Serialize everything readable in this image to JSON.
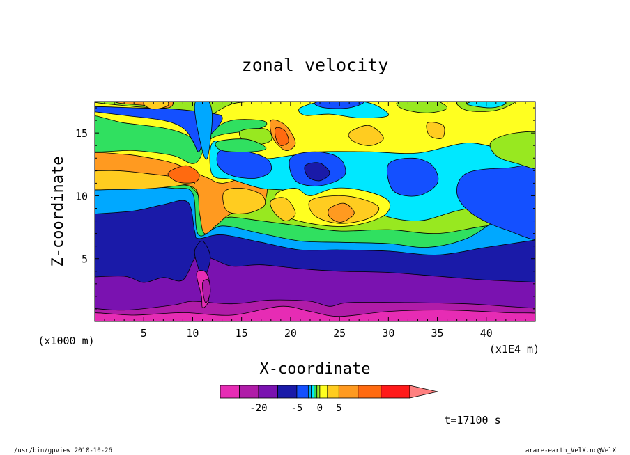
{
  "chart_data": {
    "type": "heatmap",
    "title": "zonal velocity",
    "xlabel": "X-coordinate",
    "ylabel": "Z-coordinate",
    "x_unit_label": "(x1E4 m)",
    "y_unit_label": "(x1000 m)",
    "xlim": [
      0,
      45
    ],
    "ylim": [
      0,
      17.5
    ],
    "x_ticks": [
      5,
      10,
      15,
      20,
      25,
      30,
      35,
      40
    ],
    "y_ticks": [
      5,
      10,
      15
    ],
    "colorbar": {
      "labels": [
        {
          "text": "-20",
          "value": -20
        },
        {
          "text": "-5",
          "value": -5
        },
        {
          "text": "0",
          "value": 0
        },
        {
          "text": "5",
          "value": 5
        }
      ],
      "levels": [
        {
          "color": "#e62cb4"
        },
        {
          "color": "#b01ca8"
        },
        {
          "color": "#7a12b0"
        },
        {
          "color": "#1a1aa8"
        },
        {
          "color": "#1450ff"
        },
        {
          "color": "#00a8ff"
        },
        {
          "color": "#00e8ff"
        },
        {
          "color": "#30e060"
        },
        {
          "color": "#98e820"
        },
        {
          "color": "#ffff20"
        },
        {
          "color": "#ffcc20"
        },
        {
          "color": "#ff9a20"
        },
        {
          "color": "#ff6a10"
        },
        {
          "color": "#ff1a1a"
        }
      ],
      "segment_weights": [
        1,
        1,
        1,
        1,
        0.6,
        0.15,
        0.15,
        0.15,
        0.15,
        0.4,
        0.6,
        1,
        1.2,
        1.5
      ],
      "over_color": "#ff8080"
    },
    "time_label": "t=17100 s",
    "footer_left": "/usr/bin/gpview   2010-10-26",
    "footer_right": "arare-earth_VelX.nc@VelX"
  }
}
